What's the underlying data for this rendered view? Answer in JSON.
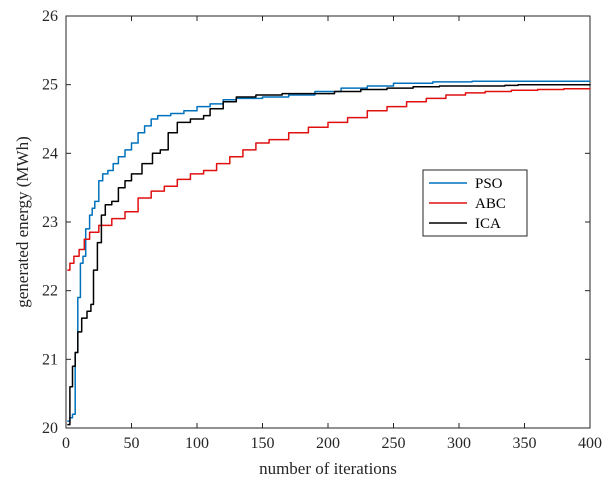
{
  "chart_data": {
    "type": "line",
    "xlabel": "number of iterations",
    "ylabel": "generated energy (MWh)",
    "xlim": [
      0,
      400
    ],
    "ylim": [
      20,
      26
    ],
    "xticks": [
      0,
      50,
      100,
      150,
      200,
      250,
      300,
      350,
      400
    ],
    "yticks": [
      20,
      21,
      22,
      23,
      24,
      25,
      26
    ],
    "grid": false,
    "legend_position": "right-middle",
    "series": [
      {
        "name": "PSO",
        "color": "#0072BD",
        "points": [
          [
            1,
            20.1
          ],
          [
            3,
            20.15
          ],
          [
            5,
            20.2
          ],
          [
            7,
            21.1
          ],
          [
            9,
            21.9
          ],
          [
            11,
            22.4
          ],
          [
            13,
            22.5
          ],
          [
            15,
            22.9
          ],
          [
            18,
            23.1
          ],
          [
            20,
            23.2
          ],
          [
            22,
            23.3
          ],
          [
            25,
            23.6
          ],
          [
            28,
            23.7
          ],
          [
            32,
            23.75
          ],
          [
            36,
            23.85
          ],
          [
            40,
            23.95
          ],
          [
            45,
            24.05
          ],
          [
            50,
            24.15
          ],
          [
            55,
            24.3
          ],
          [
            60,
            24.4
          ],
          [
            65,
            24.5
          ],
          [
            70,
            24.55
          ],
          [
            80,
            24.58
          ],
          [
            90,
            24.62
          ],
          [
            100,
            24.68
          ],
          [
            110,
            24.72
          ],
          [
            120,
            24.78
          ],
          [
            130,
            24.8
          ],
          [
            150,
            24.82
          ],
          [
            170,
            24.85
          ],
          [
            190,
            24.9
          ],
          [
            210,
            24.95
          ],
          [
            230,
            24.98
          ],
          [
            250,
            25.02
          ],
          [
            280,
            25.04
          ],
          [
            310,
            25.05
          ],
          [
            350,
            25.05
          ],
          [
            400,
            25.05
          ]
        ]
      },
      {
        "name": "ABC",
        "color": "#E01010",
        "points": [
          [
            1,
            22.3
          ],
          [
            3,
            22.4
          ],
          [
            6,
            22.5
          ],
          [
            10,
            22.6
          ],
          [
            14,
            22.75
          ],
          [
            18,
            22.85
          ],
          [
            25,
            22.95
          ],
          [
            35,
            23.05
          ],
          [
            45,
            23.15
          ],
          [
            55,
            23.35
          ],
          [
            65,
            23.45
          ],
          [
            75,
            23.52
          ],
          [
            85,
            23.62
          ],
          [
            95,
            23.7
          ],
          [
            105,
            23.75
          ],
          [
            115,
            23.85
          ],
          [
            125,
            23.95
          ],
          [
            135,
            24.05
          ],
          [
            145,
            24.15
          ],
          [
            155,
            24.2
          ],
          [
            170,
            24.3
          ],
          [
            185,
            24.38
          ],
          [
            200,
            24.45
          ],
          [
            215,
            24.52
          ],
          [
            230,
            24.62
          ],
          [
            245,
            24.68
          ],
          [
            260,
            24.75
          ],
          [
            275,
            24.8
          ],
          [
            290,
            24.85
          ],
          [
            305,
            24.88
          ],
          [
            320,
            24.9
          ],
          [
            340,
            24.92
          ],
          [
            360,
            24.93
          ],
          [
            380,
            24.94
          ],
          [
            400,
            24.95
          ]
        ]
      },
      {
        "name": "ICA",
        "color": "#000000",
        "points": [
          [
            1,
            20.05
          ],
          [
            3,
            20.6
          ],
          [
            5,
            20.9
          ],
          [
            7,
            21.1
          ],
          [
            9,
            21.4
          ],
          [
            12,
            21.6
          ],
          [
            16,
            21.7
          ],
          [
            19,
            21.8
          ],
          [
            21,
            22.3
          ],
          [
            24,
            22.7
          ],
          [
            27,
            23.1
          ],
          [
            30,
            23.25
          ],
          [
            35,
            23.3
          ],
          [
            40,
            23.5
          ],
          [
            45,
            23.6
          ],
          [
            50,
            23.7
          ],
          [
            58,
            23.85
          ],
          [
            66,
            24.0
          ],
          [
            72,
            24.05
          ],
          [
            78,
            24.3
          ],
          [
            85,
            24.45
          ],
          [
            95,
            24.5
          ],
          [
            105,
            24.55
          ],
          [
            110,
            24.65
          ],
          [
            120,
            24.75
          ],
          [
            130,
            24.82
          ],
          [
            145,
            24.85
          ],
          [
            165,
            24.87
          ],
          [
            185,
            24.87
          ],
          [
            205,
            24.9
          ],
          [
            225,
            24.93
          ],
          [
            245,
            24.95
          ],
          [
            265,
            24.97
          ],
          [
            285,
            24.98
          ],
          [
            310,
            24.98
          ],
          [
            335,
            24.99
          ],
          [
            345,
            25.0
          ],
          [
            370,
            25.0
          ],
          [
            400,
            25.01
          ]
        ]
      }
    ]
  }
}
